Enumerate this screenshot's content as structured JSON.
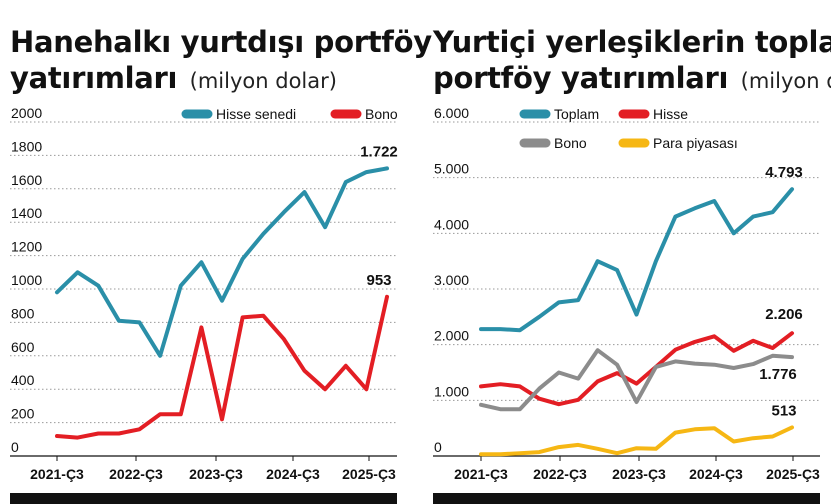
{
  "chart_data": [
    {
      "type": "line",
      "title_line1": "Hanehalkı yurtdışı portföy",
      "title_line2": "yatırımları",
      "unit": "(milyon dolar)",
      "x_ticks": [
        "2021-Ç3",
        "2022-Ç3",
        "2023-Ç3",
        "2024-Ç3",
        "2025-Ç3"
      ],
      "y_ticks": [
        "2000",
        "1800",
        "1600",
        "1400",
        "1200",
        "1000",
        "800",
        "600",
        "400",
        "200",
        "0"
      ],
      "ylim": [
        0,
        2000
      ],
      "legend_position": "top",
      "series": [
        {
          "name": "Hisse senedi",
          "color": "#2a8fa8",
          "values": [
            980,
            1100,
            1020,
            810,
            800,
            600,
            1020,
            1160,
            930,
            1180,
            1330,
            1460,
            1580,
            1370,
            1640,
            1700,
            1722
          ],
          "end_label": "1.722"
        },
        {
          "name": "Bono",
          "color": "#e31e24",
          "values": [
            120,
            110,
            135,
            135,
            160,
            250,
            250,
            770,
            220,
            830,
            840,
            700,
            510,
            400,
            540,
            400,
            953
          ],
          "end_label": "953"
        }
      ]
    },
    {
      "type": "line",
      "title_line1": "Yurtiçi yerleşiklerin toplam",
      "title_line2": "portföy yatırımları",
      "unit": "(milyon dolar)",
      "x_ticks": [
        "2021-Ç3",
        "2022-Ç3",
        "2023-Ç3",
        "2024-Ç3",
        "2025-Ç3"
      ],
      "y_ticks": [
        "6.000",
        "5.000",
        "4.000",
        "3.000",
        "2.000",
        "1.000",
        "0"
      ],
      "ylim": [
        0,
        6000
      ],
      "legend_position": "top",
      "series": [
        {
          "name": "Toplam",
          "color": "#2a8fa8",
          "values": [
            2280,
            2280,
            2260,
            2500,
            2760,
            2800,
            3500,
            3340,
            2540,
            3500,
            4300,
            4450,
            4580,
            4000,
            4300,
            4380,
            4793
          ],
          "end_label": "4.793"
        },
        {
          "name": "Hisse",
          "color": "#e31e24",
          "values": [
            1250,
            1290,
            1250,
            1030,
            930,
            1010,
            1340,
            1490,
            1300,
            1600,
            1910,
            2050,
            2150,
            1890,
            2070,
            1940,
            2206
          ],
          "end_label": "2.206"
        },
        {
          "name": "Bono",
          "color": "#8c8c8c",
          "values": [
            920,
            840,
            840,
            1210,
            1500,
            1390,
            1900,
            1640,
            970,
            1600,
            1700,
            1660,
            1640,
            1580,
            1650,
            1800,
            1776
          ],
          "end_label": "1.776"
        },
        {
          "name": "Para piyasası",
          "color": "#f6b714",
          "values": [
            30,
            30,
            50,
            70,
            160,
            200,
            130,
            50,
            140,
            130,
            420,
            480,
            500,
            260,
            320,
            350,
            513
          ],
          "end_label": "513"
        }
      ]
    }
  ]
}
